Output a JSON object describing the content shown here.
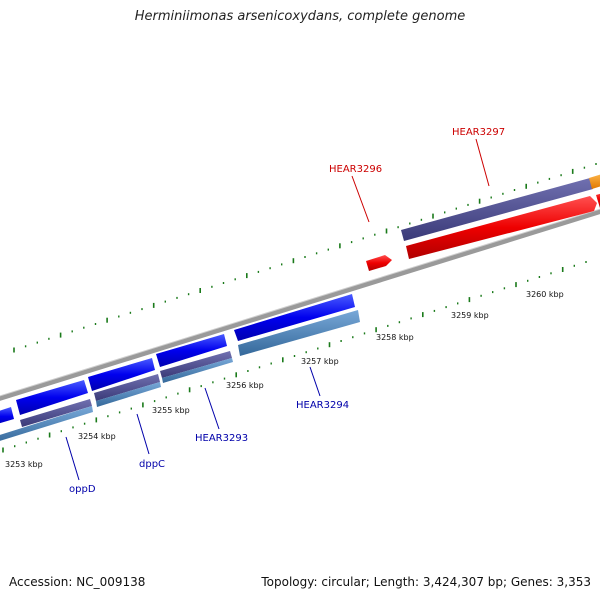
{
  "title": "Herminiimonas arsenicoxydans, complete genome",
  "accession": "Accession: NC_009138",
  "summary": "Topology: circular; Length: 3,424,307 bp; Genes: 3,353",
  "ruler_labels": [
    "3253 kbp",
    "3254 kbp",
    "3255 kbp",
    "3256 kbp",
    "3257 kbp",
    "3258 kbp",
    "3259 kbp",
    "3260 kbp"
  ],
  "gene_labels": [
    {
      "text": "HEAR3297",
      "strand": "forward"
    },
    {
      "text": "HEAR3296",
      "strand": "forward"
    },
    {
      "text": "HEAR3294",
      "strand": "reverse"
    },
    {
      "text": "HEAR3293",
      "strand": "reverse"
    },
    {
      "text": "dppC",
      "strand": "reverse"
    },
    {
      "text": "oppD",
      "strand": "reverse"
    }
  ],
  "colors": {
    "backbone": "#888888",
    "ticks": "#1a7a1a",
    "forward_gene": "#ff0000",
    "reverse_gene": "#0000ee",
    "forward_label": "#cc0000",
    "reverse_label": "#0000aa",
    "cog_purple": "#4a4a8c",
    "cog_steel": "#4682b4",
    "cog_orange": "#ff9900"
  }
}
